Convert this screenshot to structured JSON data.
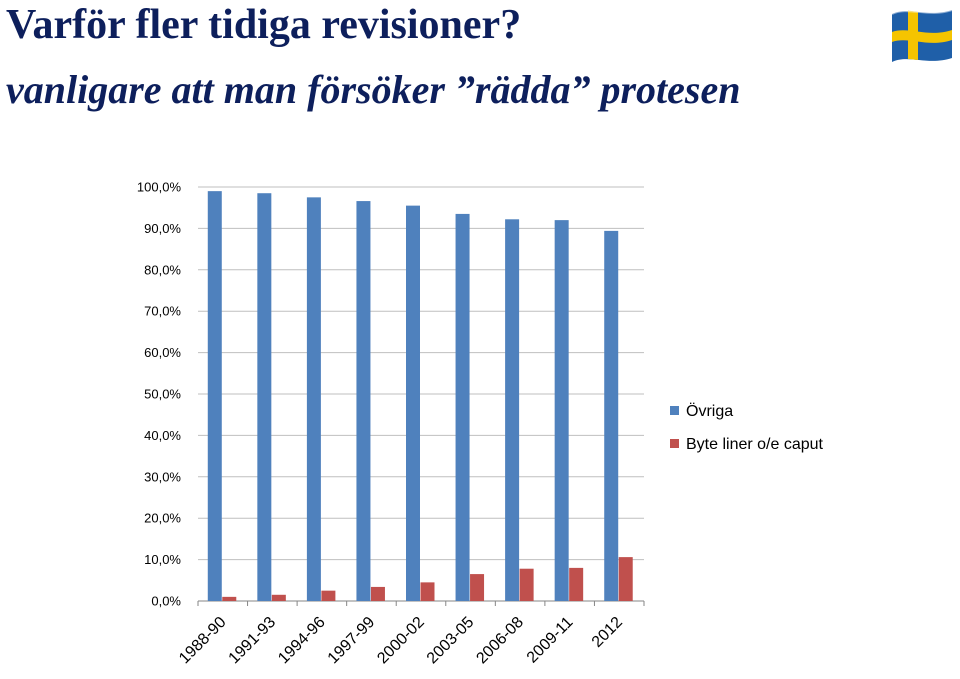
{
  "slide": {
    "title": "Varför fler tidiga revisioner?",
    "subtitle": "vanligare att man försöker ”rädda” protesen"
  },
  "flag": {
    "icon": "sweden-flag-icon",
    "colors": {
      "blue": "#1f5fa8",
      "yellow": "#f5c400"
    }
  },
  "chart_data": {
    "type": "bar",
    "categories": [
      "1988-90",
      "1991-93",
      "1994-96",
      "1997-99",
      "2000-02",
      "2003-05",
      "2006-08",
      "2009-11",
      "2012"
    ],
    "series": [
      {
        "name": "Övriga",
        "color": "#4f81bd",
        "values": [
          99.0,
          98.5,
          97.5,
          96.6,
          95.5,
          93.5,
          92.2,
          92.0,
          89.4
        ]
      },
      {
        "name": "Byte liner o/e caput",
        "color": "#c0504d",
        "values": [
          1.0,
          1.5,
          2.5,
          3.4,
          4.5,
          6.5,
          7.8,
          8.0,
          10.6
        ]
      }
    ],
    "ylim": [
      0,
      100
    ],
    "yticks": [
      "0,0%",
      "10,0%",
      "20,0%",
      "30,0%",
      "40,0%",
      "50,0%",
      "60,0%",
      "70,0%",
      "80,0%",
      "90,0%",
      "100,0%"
    ],
    "grid": true,
    "legend": "right",
    "xlabel": "",
    "ylabel": ""
  }
}
